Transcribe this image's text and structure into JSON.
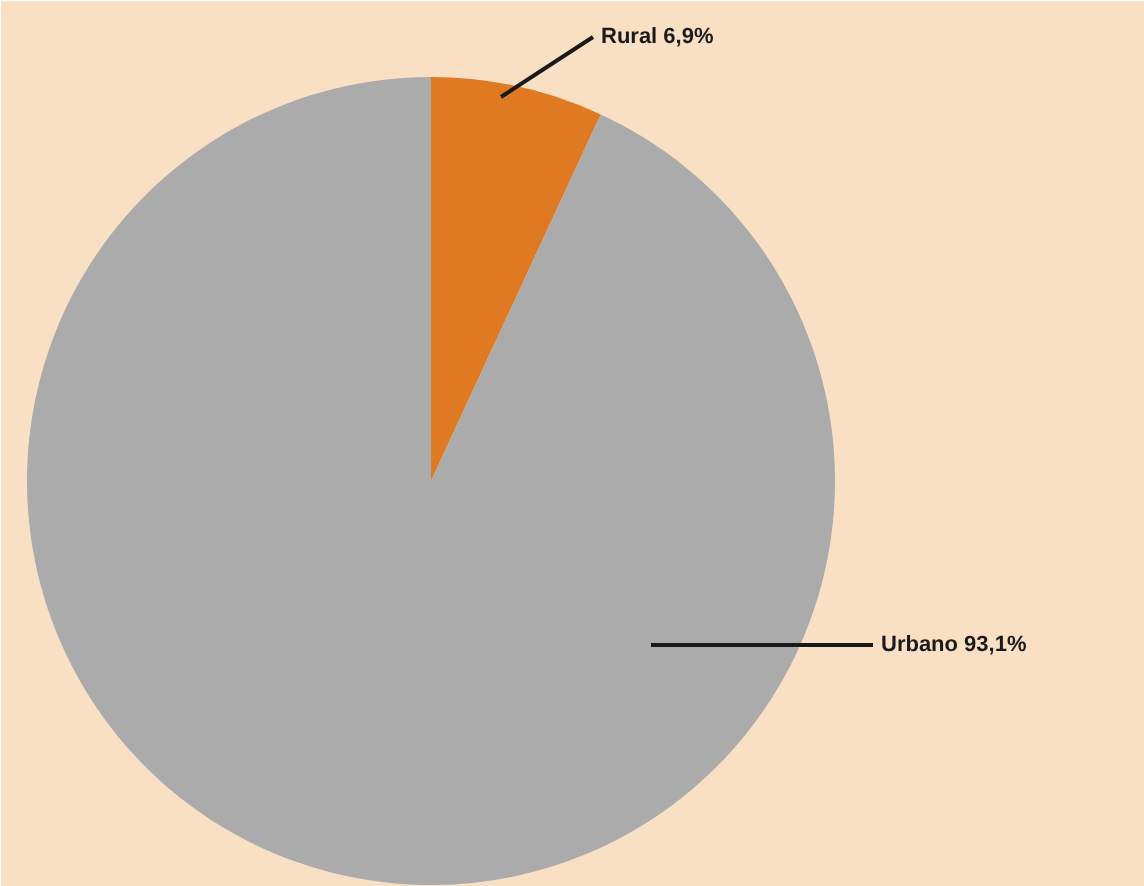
{
  "chart_data": {
    "type": "pie",
    "categories": [
      "Rural",
      "Urbano"
    ],
    "values": [
      6.9,
      93.1
    ],
    "colors": [
      "#e07a22",
      "#ababab"
    ],
    "value_labels": [
      "6,9%",
      "93,1%"
    ]
  }
}
